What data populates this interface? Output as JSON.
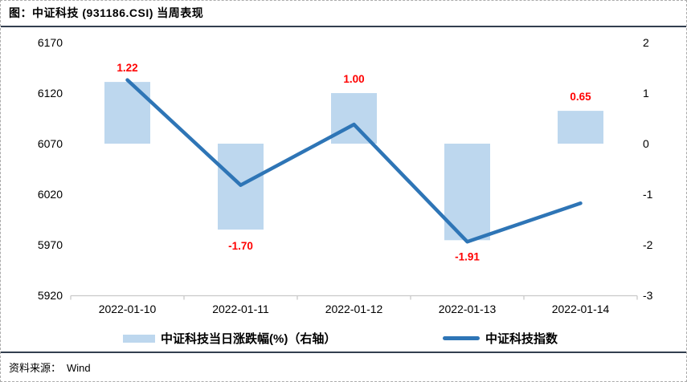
{
  "footer": {
    "source_label": "资料来源：",
    "source_value": "Wind"
  },
  "colors": {
    "bar": "#BDD7EE",
    "line": "#2E75B6",
    "data_label": "#FF0000",
    "divider": "#333F4F",
    "axis_line": "#C9C9C9",
    "text": "#000000"
  },
  "chart_data": {
    "type": "combo",
    "title": "图：中证科技 (931186.CSI) 当周表现",
    "categories": [
      "2022-01-10",
      "2022-01-11",
      "2022-01-12",
      "2022-01-13",
      "2022-01-14"
    ],
    "series": [
      {
        "name": "中证科技当日涨跌幅(%)（右轴）",
        "type": "bar",
        "axis": "right",
        "values": [
          1.22,
          -1.7,
          1.0,
          -1.91,
          0.65
        ],
        "labels": [
          "1.22",
          "-1.70",
          "1.00",
          "-1.91",
          "0.65"
        ]
      },
      {
        "name": "中证科技指数",
        "type": "line",
        "axis": "left",
        "values": [
          6133,
          6029,
          6089,
          5973,
          6011
        ]
      }
    ],
    "left_axis": {
      "min": 5920,
      "max": 6170,
      "step": 50,
      "ticks": [
        6170,
        6120,
        6070,
        6020,
        5970,
        5920
      ]
    },
    "right_axis": {
      "min": -3,
      "max": 2,
      "step": 1,
      "ticks": [
        2,
        1,
        0,
        -1,
        -2,
        -3
      ]
    },
    "grid": false,
    "legend_position": "bottom"
  }
}
